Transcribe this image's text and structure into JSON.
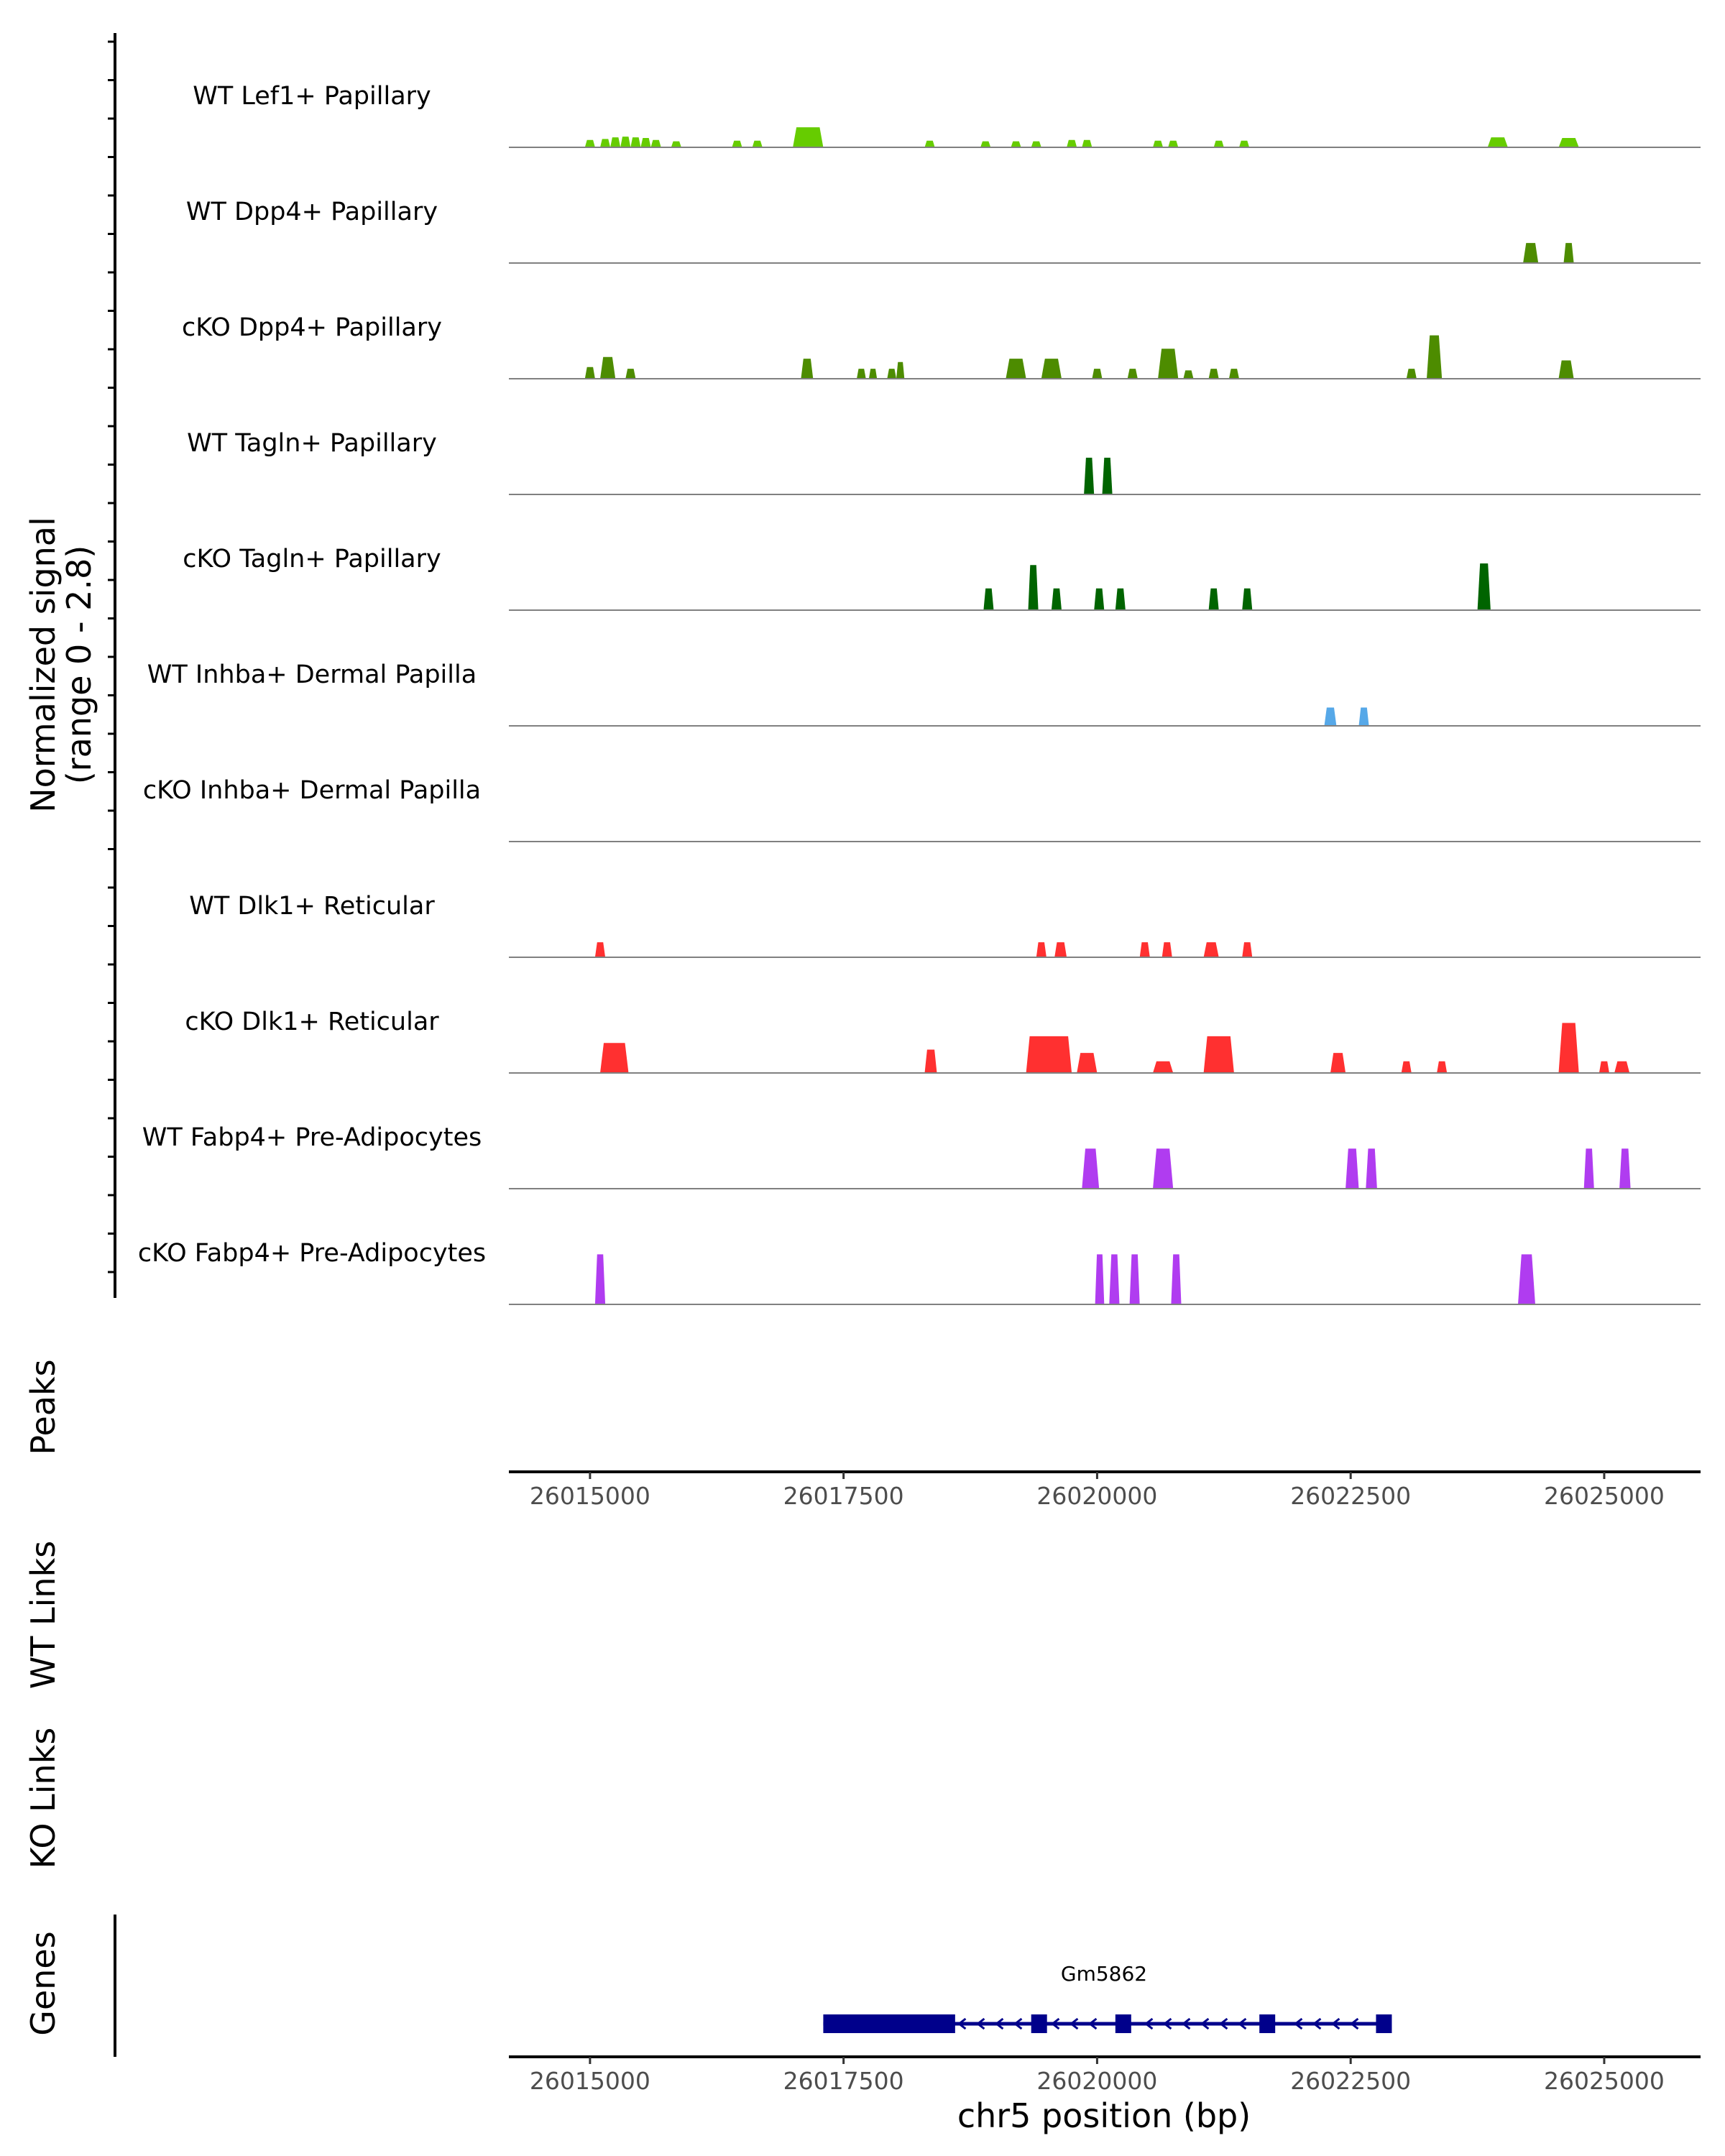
{
  "chart_data": {
    "type": "area",
    "title": "",
    "chromosome": "chr5",
    "xlabel": "chr5 position (bp)",
    "ylabel": "Normalized signal",
    "ylabel_range": "(range 0 - 2.8)",
    "xlim": [
      26014200,
      26025950
    ],
    "ylim": [
      0,
      2.8
    ],
    "x_ticks": [
      26015000,
      26017500,
      26020000,
      26022500,
      26025000
    ],
    "x_tick_labels": [
      "26015000",
      "26017500",
      "26020000",
      "26022500",
      "26025000"
    ],
    "panel_labels": {
      "peaks": "Peaks",
      "wt_links": "WT Links",
      "ko_links": "KO Links",
      "genes": "Genes"
    },
    "gene": {
      "name": "Gm5862",
      "strand": "-",
      "start": 26017300,
      "end": 26022900,
      "color": "#00008b",
      "exons": [
        [
          26017300,
          26018600
        ],
        [
          26019350,
          26019500
        ],
        [
          26020180,
          26020300
        ],
        [
          26021600,
          26021750
        ],
        [
          26022750,
          26022900
        ]
      ]
    },
    "series": [
      {
        "name": "WT Lef1+ Papillary",
        "color": "#66cc00",
        "peaks": [
          [
            26014950,
            26015050,
            0.22
          ],
          [
            26015100,
            26015200,
            0.25
          ],
          [
            26015200,
            26015300,
            0.3
          ],
          [
            26015300,
            26015400,
            0.32
          ],
          [
            26015400,
            26015500,
            0.3
          ],
          [
            26015500,
            26015600,
            0.28
          ],
          [
            26015600,
            26015700,
            0.22
          ],
          [
            26015800,
            26015900,
            0.18
          ],
          [
            26016400,
            26016500,
            0.2
          ],
          [
            26016600,
            26016700,
            0.2
          ],
          [
            26017000,
            26017300,
            0.6
          ],
          [
            26018300,
            26018400,
            0.2
          ],
          [
            26018850,
            26018950,
            0.18
          ],
          [
            26019150,
            26019250,
            0.18
          ],
          [
            26019350,
            26019450,
            0.18
          ],
          [
            26019700,
            26019800,
            0.22
          ],
          [
            26019850,
            26019950,
            0.22
          ],
          [
            26020550,
            26020650,
            0.2
          ],
          [
            26020700,
            26020800,
            0.2
          ],
          [
            26021150,
            26021250,
            0.2
          ],
          [
            26021400,
            26021500,
            0.2
          ],
          [
            26023850,
            26024050,
            0.3
          ],
          [
            26024550,
            26024750,
            0.28
          ]
        ]
      },
      {
        "name": "WT Dpp4+ Papillary",
        "color": "#4d8c00",
        "peaks": [
          [
            26024200,
            26024350,
            0.6
          ],
          [
            26024600,
            26024700,
            0.6
          ]
        ]
      },
      {
        "name": "cKO Dpp4+ Papillary",
        "color": "#4d8c00",
        "peaks": [
          [
            26014950,
            26015050,
            0.35
          ],
          [
            26015100,
            26015250,
            0.65
          ],
          [
            26015350,
            26015450,
            0.3
          ],
          [
            26017080,
            26017200,
            0.6
          ],
          [
            26017630,
            26017720,
            0.3
          ],
          [
            26017750,
            26017830,
            0.3
          ],
          [
            26017930,
            26018020,
            0.3
          ],
          [
            26018020,
            26018100,
            0.5
          ],
          [
            26019100,
            26019300,
            0.6
          ],
          [
            26019450,
            26019650,
            0.6
          ],
          [
            26019950,
            26020050,
            0.3
          ],
          [
            26020300,
            26020400,
            0.3
          ],
          [
            26020600,
            26020800,
            0.9
          ],
          [
            26020850,
            26020950,
            0.25
          ],
          [
            26021100,
            26021200,
            0.3
          ],
          [
            26021300,
            26021400,
            0.3
          ],
          [
            26023050,
            26023150,
            0.3
          ],
          [
            26023250,
            26023400,
            1.3
          ],
          [
            26024550,
            26024700,
            0.55
          ]
        ]
      },
      {
        "name": "WT Tagln+ Papillary",
        "color": "#006400",
        "peaks": [
          [
            26019870,
            26019970,
            1.1
          ],
          [
            26020050,
            26020150,
            1.1
          ]
        ]
      },
      {
        "name": "cKO Tagln+ Papillary",
        "color": "#006400",
        "peaks": [
          [
            26018880,
            26018980,
            0.65
          ],
          [
            26019320,
            26019420,
            1.35
          ],
          [
            26019550,
            26019650,
            0.65
          ],
          [
            26019970,
            26020070,
            0.65
          ],
          [
            26020180,
            26020280,
            0.65
          ],
          [
            26021100,
            26021200,
            0.65
          ],
          [
            26021430,
            26021530,
            0.65
          ],
          [
            26023750,
            26023880,
            1.4
          ]
        ]
      },
      {
        "name": "WT Inhba+ Dermal Papilla",
        "color": "#56a8e8",
        "peaks": [
          [
            26022240,
            26022360,
            0.55
          ],
          [
            26022580,
            26022680,
            0.55
          ]
        ]
      },
      {
        "name": "cKO Inhba+ Dermal Papilla",
        "color": "#56a8e8",
        "peaks": []
      },
      {
        "name": "WT Dlk1+ Reticular",
        "color": "#ff3030",
        "peaks": [
          [
            26015050,
            26015150,
            0.45
          ],
          [
            26019400,
            26019500,
            0.45
          ],
          [
            26019580,
            26019700,
            0.45
          ],
          [
            26020420,
            26020520,
            0.45
          ],
          [
            26020640,
            26020740,
            0.45
          ],
          [
            26021050,
            26021200,
            0.45
          ],
          [
            26021430,
            26021530,
            0.45
          ]
        ]
      },
      {
        "name": "cKO Dlk1+ Reticular",
        "color": "#ff3030",
        "peaks": [
          [
            26015100,
            26015380,
            0.9
          ],
          [
            26018300,
            26018420,
            0.7
          ],
          [
            26019300,
            26019750,
            1.1
          ],
          [
            26019800,
            26020000,
            0.6
          ],
          [
            26020550,
            26020750,
            0.35
          ],
          [
            26021050,
            26021350,
            1.1
          ],
          [
            26022300,
            26022450,
            0.6
          ],
          [
            26023000,
            26023100,
            0.35
          ],
          [
            26023350,
            26023450,
            0.35
          ],
          [
            26024550,
            26024750,
            1.5
          ],
          [
            26024950,
            26025050,
            0.35
          ],
          [
            26025100,
            26025250,
            0.35
          ]
        ]
      },
      {
        "name": "WT Fabp4+ Pre-Adipocytes",
        "color": "#b03cf0",
        "peaks": [
          [
            26019850,
            26020020,
            1.2
          ],
          [
            26020550,
            26020750,
            1.2
          ],
          [
            26022450,
            26022580,
            1.2
          ],
          [
            26022650,
            26022760,
            1.2
          ],
          [
            26024800,
            26024900,
            1.2
          ],
          [
            26025150,
            26025260,
            1.2
          ]
        ]
      },
      {
        "name": "cKO Fabp4+ Pre-Adipocytes",
        "color": "#b03cf0",
        "peaks": [
          [
            26015050,
            26015150,
            1.5
          ],
          [
            26019980,
            26020070,
            1.5
          ],
          [
            26020120,
            26020220,
            1.5
          ],
          [
            26020320,
            26020420,
            1.5
          ],
          [
            26020730,
            26020830,
            1.5
          ],
          [
            26024150,
            26024320,
            1.5
          ]
        ]
      }
    ]
  }
}
